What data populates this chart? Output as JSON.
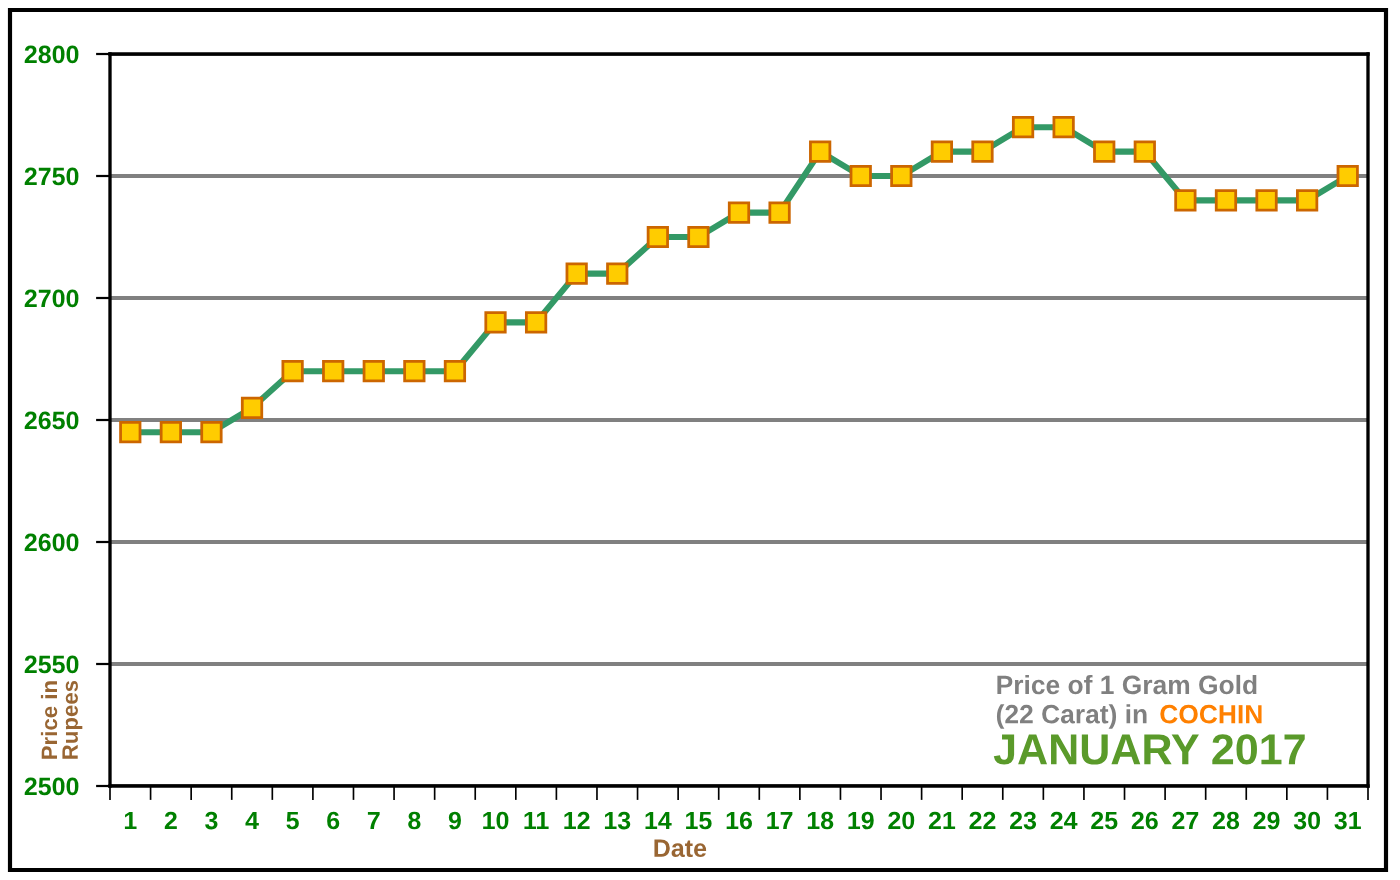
{
  "chart_data": {
    "type": "line",
    "xlabel": "Date",
    "ylabel": "Price in\nRupees",
    "categories": [
      "1",
      "2",
      "3",
      "4",
      "5",
      "6",
      "7",
      "8",
      "9",
      "10",
      "11",
      "12",
      "13",
      "14",
      "15",
      "16",
      "17",
      "18",
      "19",
      "20",
      "21",
      "22",
      "23",
      "24",
      "25",
      "26",
      "27",
      "28",
      "29",
      "30",
      "31"
    ],
    "series": [
      {
        "color": "#339966",
        "values": [
          2645,
          2645,
          2645,
          2655,
          2670,
          2670,
          2670,
          2670,
          2670,
          2690,
          2690,
          2710,
          2710,
          2725,
          2725,
          2735,
          2735,
          2760,
          2750,
          2750,
          2760,
          2760,
          2770,
          2770,
          2760,
          2760,
          2740,
          2740,
          2740,
          2740,
          2750
        ]
      }
    ],
    "ylim": [
      2500,
      2800
    ],
    "yticks": [
      2500,
      2550,
      2600,
      2650,
      2700,
      2750,
      2800
    ],
    "grid": "y",
    "marker": "square",
    "line_style": "solid",
    "annotations": [
      "Price of 1 Gram Gold",
      "(22 Carat) in",
      "COCHIN",
      "JANUARY 2017"
    ]
  }
}
